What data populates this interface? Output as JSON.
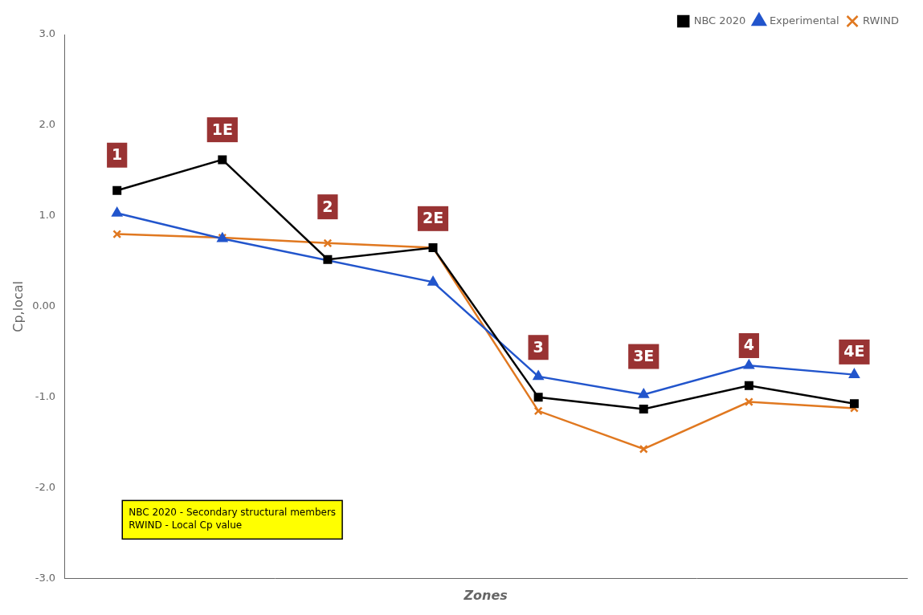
{
  "chart_data": {
    "type": "line",
    "xlabel": "Zones",
    "ylabel": "Cp,local",
    "x": [
      1,
      2,
      3,
      4,
      5,
      6,
      7,
      8
    ],
    "series": [
      {
        "name": "NBC 2020",
        "color": "#000000",
        "marker": "square",
        "values": [
          1.28,
          1.62,
          0.52,
          0.65,
          -1.0,
          -1.13,
          -0.87,
          -1.07
        ]
      },
      {
        "name": "Experimental",
        "color": "#2255CC",
        "marker": "triangle",
        "values": [
          1.03,
          0.75,
          null,
          0.27,
          -0.77,
          -0.97,
          -0.65,
          -0.75
        ]
      },
      {
        "name": "RWIND",
        "color": "#E07820",
        "marker": "x",
        "values": [
          0.8,
          0.76,
          0.7,
          0.65,
          -1.15,
          -1.57,
          -1.05,
          -1.12
        ]
      }
    ],
    "xlim": [
      0.5,
      8.5
    ],
    "ylim": [
      -3.0,
      3.0
    ],
    "yticks": [
      {
        "value": -3.0,
        "label": "-3.0"
      },
      {
        "value": -2.0,
        "label": "-2.0"
      },
      {
        "value": -1.0,
        "label": "-1.0"
      },
      {
        "value": 0.0,
        "label": "0.00"
      },
      {
        "value": 1.0,
        "label": "1.0"
      },
      {
        "value": 2.0,
        "label": "2.0"
      },
      {
        "value": 3.0,
        "label": "3.0"
      }
    ],
    "tick_labels": "y",
    "grid": false,
    "legend": "upper right",
    "annotations": [
      {
        "text": "1",
        "x": 1,
        "y": 1.67,
        "color": "#993333"
      },
      {
        "text": "1E",
        "x": 2,
        "y": 1.95,
        "color": "#993333"
      },
      {
        "text": "2",
        "x": 3,
        "y": 1.1,
        "color": "#993333"
      },
      {
        "text": "2E",
        "x": 4,
        "y": 0.97,
        "color": "#993333"
      },
      {
        "text": "3",
        "x": 5,
        "y": -0.45,
        "color": "#993333"
      },
      {
        "text": "3E",
        "x": 6,
        "y": -0.55,
        "color": "#993333"
      },
      {
        "text": "4",
        "x": 7,
        "y": -0.43,
        "color": "#993333"
      },
      {
        "text": "4E",
        "x": 8,
        "y": -0.5,
        "color": "#993333"
      }
    ],
    "note": {
      "text": "NBC 2020 - Secondary structural members\nRWIND - Local Cp value",
      "x": 1.05,
      "y": -2.35,
      "color": "#ffff00"
    }
  }
}
